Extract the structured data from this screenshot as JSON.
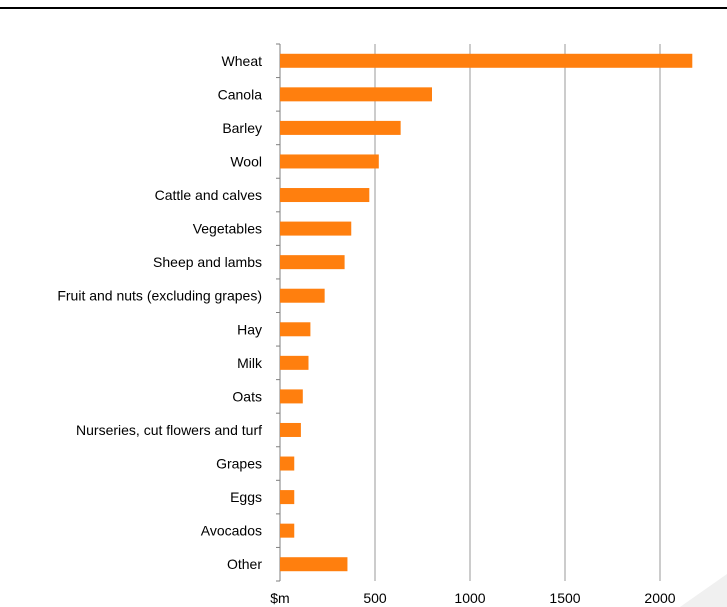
{
  "chart_data": {
    "type": "bar",
    "orientation": "horizontal",
    "categories": [
      "Wheat",
      "Canola",
      "Barley",
      "Wool",
      "Cattle and calves",
      "Vegetables",
      "Sheep and lambs",
      "Fruit and nuts (excluding grapes)",
      "Hay",
      "Milk",
      "Oats",
      "Nurseries, cut flowers and turf",
      "Grapes",
      "Eggs",
      "Avocados",
      "Other"
    ],
    "values": [
      2170,
      800,
      635,
      520,
      470,
      375,
      340,
      235,
      160,
      150,
      120,
      110,
      75,
      75,
      75,
      355
    ],
    "xlim": [
      0,
      2200
    ],
    "xticks": [
      0,
      500,
      1000,
      1500,
      2000
    ],
    "xtick_labels": [
      "$m",
      "500",
      "1000",
      "1500",
      "2000"
    ],
    "grid": "vertical",
    "bar_color": "#FF7F0E",
    "gridline_color": "#999999"
  }
}
